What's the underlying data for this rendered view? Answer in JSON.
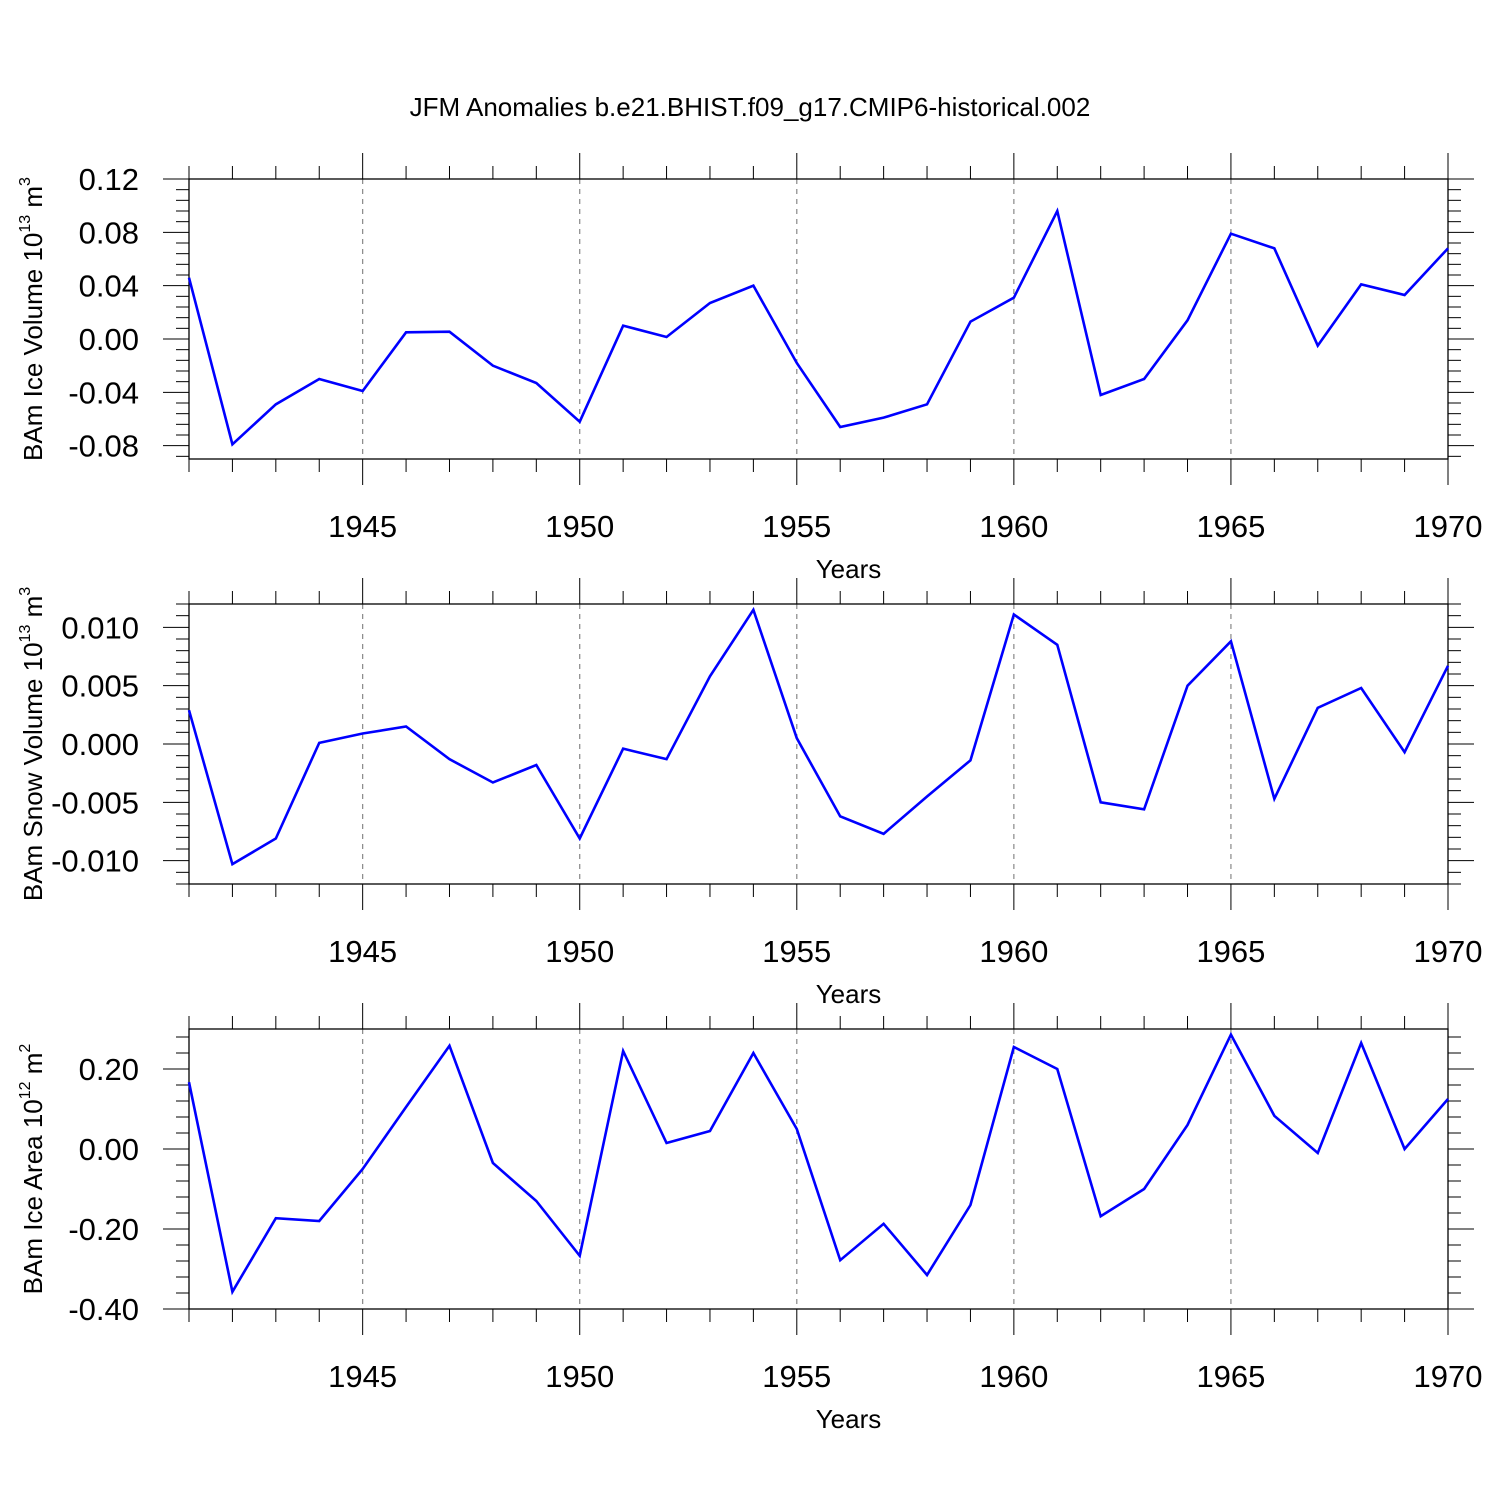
{
  "title": "JFM Anomalies b.e21.BHIST.f09_g17.CMIP6-historical.002",
  "colors": {
    "line": "#0000ff",
    "axes": "#000000",
    "grid": "#888888"
  },
  "chart_data": [
    {
      "type": "line",
      "ylabel": {
        "text": "BAm Ice Volume 10",
        "sup": "13",
        "unit": " m",
        "unit_sup": "3"
      },
      "xlabel": "Years",
      "xlim": [
        1941,
        1970
      ],
      "ylim": [
        -0.09,
        0.12
      ],
      "yticks": [
        -0.08,
        -0.04,
        0.0,
        0.04,
        0.08,
        0.12
      ],
      "ytick_labels": [
        "-0.08",
        "-0.04",
        "0.00",
        "0.04",
        "0.08",
        "0.12"
      ],
      "xticks": [
        1945,
        1950,
        1955,
        1960,
        1965,
        1970
      ],
      "xtick_labels": [
        "1945",
        "1950",
        "1955",
        "1960",
        "1965",
        "1970"
      ],
      "grid": "vertical dashed at major x ticks",
      "x": [
        1941,
        1942,
        1943,
        1944,
        1945,
        1946,
        1947,
        1948,
        1949,
        1950,
        1951,
        1952,
        1953,
        1954,
        1955,
        1956,
        1957,
        1958,
        1959,
        1960,
        1961,
        1962,
        1963,
        1964,
        1965,
        1966,
        1967,
        1968,
        1969,
        1970
      ],
      "values": [
        0.046,
        -0.079,
        -0.049,
        -0.03,
        -0.039,
        0.005,
        0.0055,
        -0.02,
        -0.033,
        -0.062,
        0.01,
        0.0015,
        0.027,
        0.04,
        -0.018,
        -0.066,
        -0.059,
        -0.049,
        0.013,
        0.031,
        0.096,
        -0.042,
        -0.03,
        0.014,
        0.079,
        0.068,
        -0.005,
        0.041,
        0.033,
        0.068
      ]
    },
    {
      "type": "line",
      "ylabel": {
        "text": "BAm Snow Volume 10",
        "sup": "13",
        "unit": " m",
        "unit_sup": "3"
      },
      "xlabel": "Years",
      "xlim": [
        1941,
        1970
      ],
      "ylim": [
        -0.012,
        0.012
      ],
      "yticks": [
        -0.01,
        -0.005,
        0.0,
        0.005,
        0.01
      ],
      "ytick_labels": [
        "-0.010",
        "-0.005",
        "0.000",
        "0.005",
        "0.010"
      ],
      "xticks": [
        1945,
        1950,
        1955,
        1960,
        1965,
        1970
      ],
      "xtick_labels": [
        "1945",
        "1950",
        "1955",
        "1960",
        "1965",
        "1970"
      ],
      "grid": "vertical dashed at major x ticks",
      "x": [
        1941,
        1942,
        1943,
        1944,
        1945,
        1946,
        1947,
        1948,
        1949,
        1950,
        1951,
        1952,
        1953,
        1954,
        1955,
        1956,
        1957,
        1958,
        1959,
        1960,
        1961,
        1962,
        1963,
        1964,
        1965,
        1966,
        1967,
        1968,
        1969,
        1970
      ],
      "values": [
        0.0029,
        -0.0103,
        -0.0081,
        0.0001,
        0.0009,
        0.0015,
        -0.0013,
        -0.0033,
        -0.0018,
        -0.0081,
        -0.0004,
        -0.0013,
        0.0058,
        0.0115,
        0.0005,
        -0.0062,
        -0.0077,
        -0.0045,
        -0.0014,
        0.0111,
        0.0085,
        -0.005,
        -0.0056,
        0.005,
        0.0088,
        -0.0047,
        0.0031,
        0.0048,
        -0.0007,
        0.0067
      ]
    },
    {
      "type": "line",
      "ylabel": {
        "text": "BAm Ice Area 10",
        "sup": "12",
        "unit": " m",
        "unit_sup": "2"
      },
      "xlabel": "Years",
      "xlim": [
        1941,
        1970
      ],
      "ylim": [
        -0.4,
        0.3
      ],
      "yticks": [
        -0.4,
        -0.2,
        0.0,
        0.2
      ],
      "ytick_labels": [
        "-0.40",
        "-0.20",
        "0.00",
        "0.20"
      ],
      "xticks": [
        1945,
        1950,
        1955,
        1960,
        1965,
        1970
      ],
      "xtick_labels": [
        "1945",
        "1950",
        "1955",
        "1960",
        "1965",
        "1970"
      ],
      "grid": "vertical dashed at major x ticks",
      "x": [
        1941,
        1942,
        1943,
        1944,
        1945,
        1946,
        1947,
        1948,
        1949,
        1950,
        1951,
        1952,
        1953,
        1954,
        1955,
        1956,
        1957,
        1958,
        1959,
        1960,
        1961,
        1962,
        1963,
        1964,
        1965,
        1966,
        1967,
        1968,
        1969,
        1970
      ],
      "values": [
        0.167,
        -0.357,
        -0.173,
        -0.18,
        -0.05,
        0.105,
        0.258,
        -0.035,
        -0.13,
        -0.267,
        0.245,
        0.015,
        0.045,
        0.24,
        0.05,
        -0.278,
        -0.187,
        -0.315,
        -0.14,
        0.255,
        0.2,
        -0.168,
        -0.1,
        0.06,
        0.286,
        0.083,
        -0.01,
        0.265,
        0.0,
        0.125
      ]
    }
  ]
}
